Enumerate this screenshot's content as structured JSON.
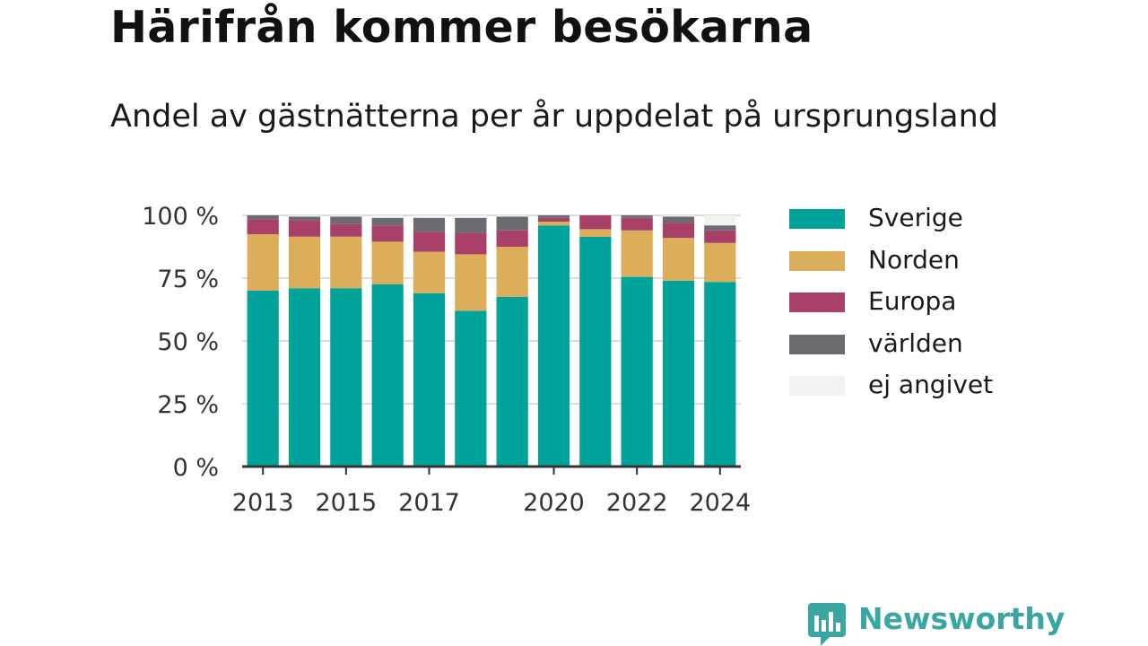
{
  "title": "Härifrån kommer besökarna",
  "subtitle": "Andel av gästnätterna per år uppdelat på ursprungsland",
  "brand": {
    "name": "Newsworthy",
    "icon": "newsworthy-chat-bars-icon",
    "color": "#3aa6a2"
  },
  "chart_data": {
    "type": "bar",
    "stacked": true,
    "categories": [
      "2013",
      "2014",
      "2015",
      "2016",
      "2017",
      "2018",
      "2019",
      "2020",
      "2021",
      "2022",
      "2023",
      "2024"
    ],
    "x_tick_labels": [
      "2013",
      "2015",
      "2017",
      "2020",
      "2022",
      "2024"
    ],
    "y_tick_labels": [
      "0 %",
      "25 %",
      "50 %",
      "75 %",
      "100 %"
    ],
    "y_ticks": [
      0,
      25,
      50,
      75,
      100
    ],
    "ylim": [
      0,
      100
    ],
    "grid": true,
    "legend_position": "right",
    "series": [
      {
        "name": "Sverige",
        "color": "#00a39a",
        "values": [
          70,
          71,
          71,
          72.5,
          69,
          62,
          67.5,
          96,
          91.5,
          75.5,
          74,
          73.5
        ]
      },
      {
        "name": "Norden",
        "color": "#dcae59",
        "values": [
          22.5,
          20.5,
          20.5,
          17,
          16.5,
          22.5,
          20,
          1.5,
          3,
          18.5,
          17,
          15.5
        ]
      },
      {
        "name": "Europa",
        "color": "#a9406a",
        "values": [
          6,
          6.5,
          5,
          6.5,
          8,
          8.5,
          6.5,
          1.5,
          5.5,
          5,
          6,
          5
        ]
      },
      {
        "name": "världen",
        "color": "#6c6b72",
        "values": [
          1.5,
          1.5,
          3,
          3,
          5.5,
          6,
          5.5,
          1,
          0,
          1,
          2.5,
          2
        ]
      },
      {
        "name": "ej angivet",
        "color": "#f2f2f0",
        "values": [
          0,
          0.5,
          0.5,
          1,
          1,
          1,
          0.5,
          0,
          0,
          0,
          0.5,
          4
        ]
      }
    ]
  }
}
